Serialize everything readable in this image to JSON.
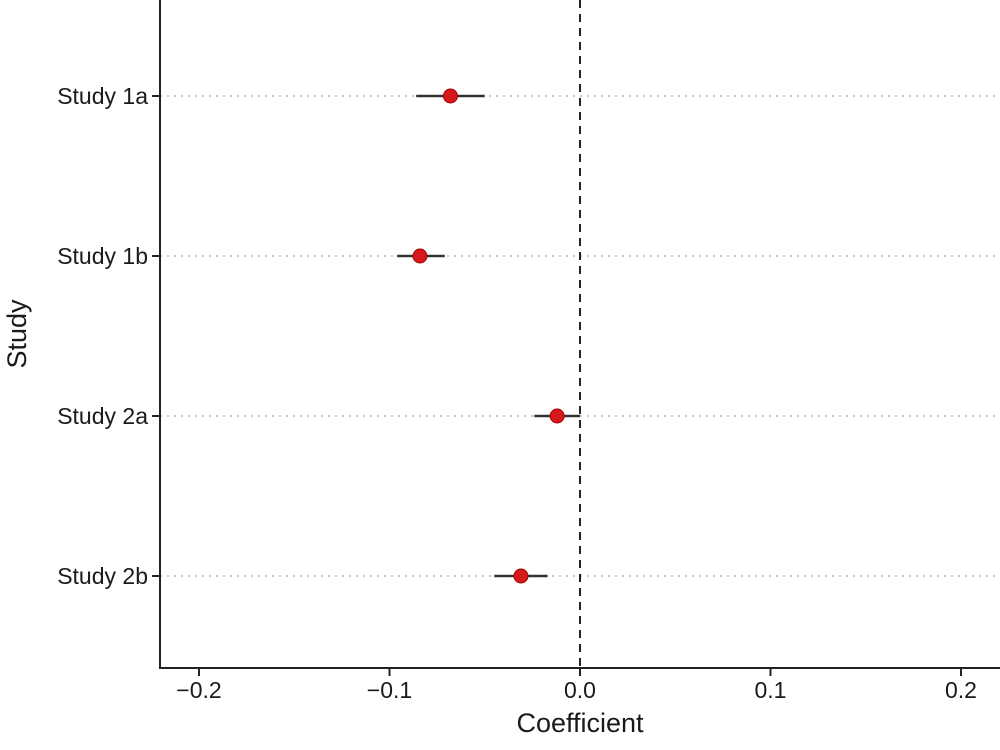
{
  "chart_data": {
    "type": "scatter",
    "xlabel": "Coefficient",
    "ylabel": "Study",
    "xlim": [
      -0.22,
      0.22
    ],
    "x_ticks": [
      -0.2,
      -0.1,
      0.0,
      0.1,
      0.2
    ],
    "x_tick_labels": [
      "−0.2",
      "−0.1",
      "0.0",
      "0.1",
      "0.2"
    ],
    "reference_line": 0.0,
    "grid": "horizontal dotted",
    "legend": "none",
    "point_color": "#d7191c",
    "studies": [
      {
        "label": "Study 1a",
        "estimate": -0.068,
        "ci_low": -0.086,
        "ci_high": -0.05
      },
      {
        "label": "Study 1b",
        "estimate": -0.084,
        "ci_low": -0.096,
        "ci_high": -0.071
      },
      {
        "label": "Study 2a",
        "estimate": -0.012,
        "ci_low": -0.024,
        "ci_high": 0.0
      },
      {
        "label": "Study 2b",
        "estimate": -0.031,
        "ci_low": -0.045,
        "ci_high": -0.017
      }
    ]
  }
}
